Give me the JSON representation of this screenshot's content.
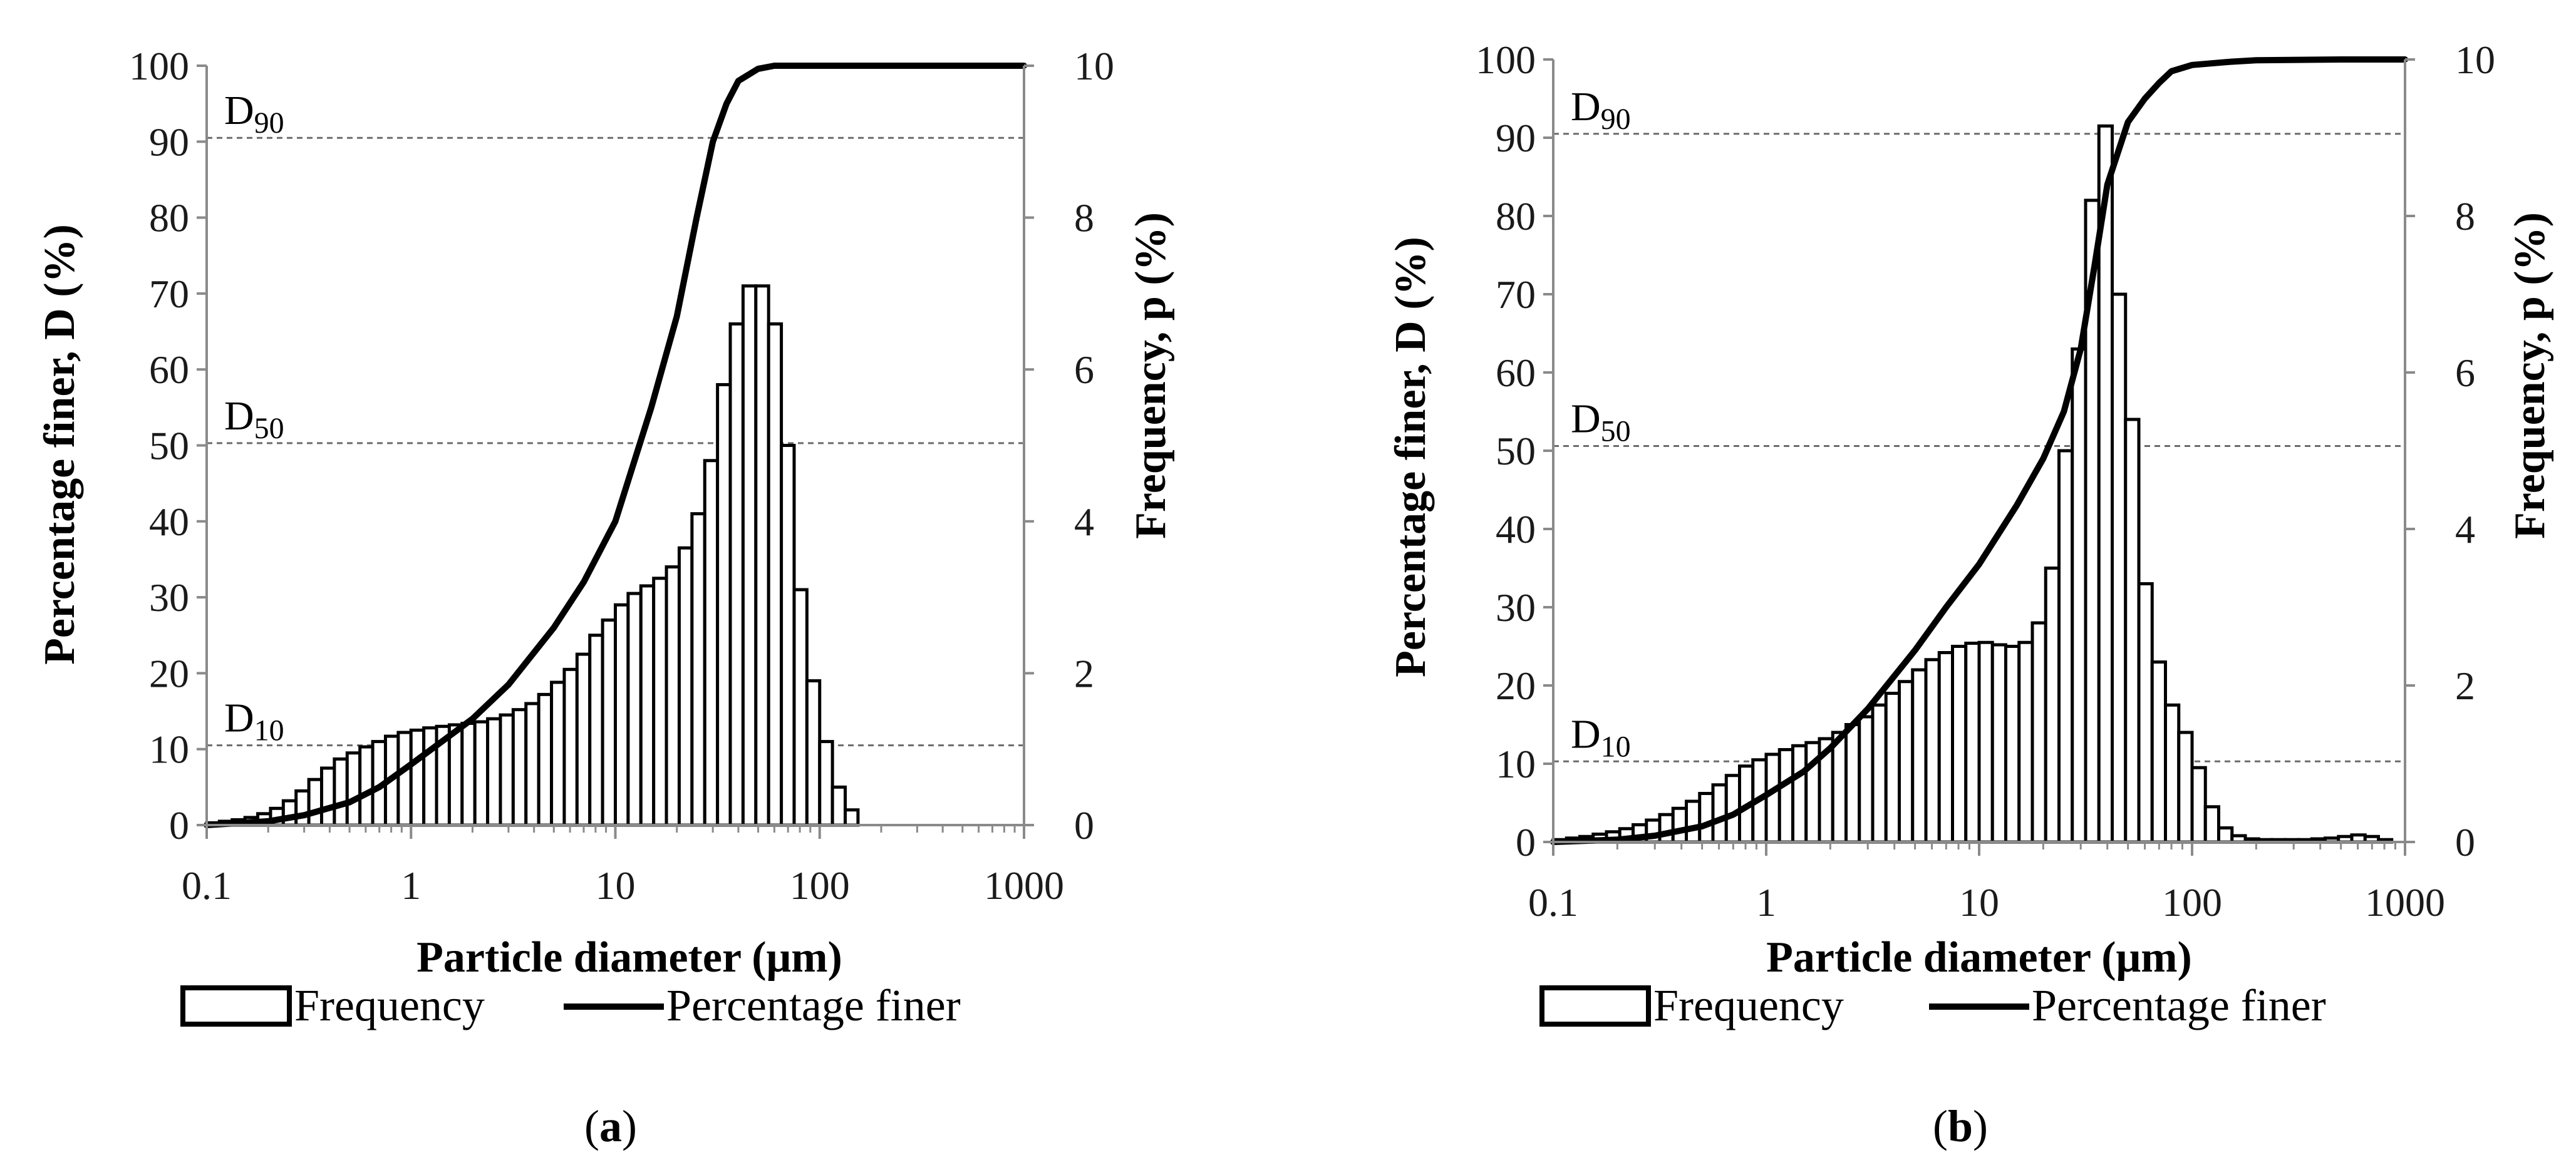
{
  "chart_data": [
    {
      "type": "bar",
      "panel_label": "a",
      "xlabel": "Particle diameter (μm)",
      "ylabel": "Percentage finer, D (%)",
      "ylabel_right": "Frequency, p (%)",
      "x_scale": "log",
      "xlim": [
        0.1,
        1000
      ],
      "ylim": [
        0,
        100
      ],
      "ylim_right": [
        0,
        10
      ],
      "x_ticks": [
        "0.1",
        "1",
        "10",
        "100",
        "1000"
      ],
      "y_ticks": [
        "0",
        "10",
        "20",
        "30",
        "40",
        "50",
        "60",
        "70",
        "80",
        "90",
        "100"
      ],
      "y_ticks_right": [
        "0",
        "2",
        "4",
        "6",
        "8",
        "10"
      ],
      "reference_lines": [
        {
          "label": "D",
          "sub": "10",
          "y": 10.5
        },
        {
          "label": "D",
          "sub": "50",
          "y": 50.3
        },
        {
          "label": "D",
          "sub": "90",
          "y": 90.5
        }
      ],
      "legend": [
        "Frequency",
        "Percentage finer"
      ],
      "series": [
        {
          "name": "Frequency",
          "kind": "histogram",
          "log_bin_start": 0.1,
          "bins_per_decade": 16,
          "values": [
            0.03,
            0.05,
            0.07,
            0.1,
            0.15,
            0.22,
            0.32,
            0.45,
            0.6,
            0.75,
            0.87,
            0.95,
            1.03,
            1.1,
            1.17,
            1.22,
            1.25,
            1.28,
            1.3,
            1.32,
            1.34,
            1.36,
            1.4,
            1.45,
            1.52,
            1.6,
            1.72,
            1.88,
            2.05,
            2.25,
            2.5,
            2.7,
            2.9,
            3.05,
            3.15,
            3.25,
            3.4,
            3.65,
            4.1,
            4.8,
            5.8,
            6.6,
            7.1,
            7.1,
            6.6,
            5.0,
            3.1,
            1.9,
            1.1,
            0.5,
            0.2
          ]
        },
        {
          "name": "Percentage finer",
          "kind": "line",
          "x": [
            0.1,
            0.2,
            0.3,
            0.5,
            0.7,
            1,
            1.5,
            2,
            3,
            5,
            7,
            10,
            15,
            20,
            25,
            30,
            35,
            40,
            50,
            60,
            70,
            100,
            200,
            500,
            1000
          ],
          "y": [
            0,
            0.5,
            1.3,
            3,
            5,
            8,
            11.5,
            14,
            18.5,
            26,
            32,
            40,
            55,
            67,
            80,
            90,
            95,
            98,
            99.6,
            100,
            100,
            100,
            100,
            100,
            100
          ]
        }
      ]
    },
    {
      "type": "bar",
      "panel_label": "b",
      "xlabel": "Particle diameter (μm)",
      "ylabel": "Percentage finer, D (%)",
      "ylabel_right": "Frequency, p (%)",
      "x_scale": "log",
      "xlim": [
        0.1,
        1000
      ],
      "ylim": [
        0,
        100
      ],
      "ylim_right": [
        0,
        10
      ],
      "x_ticks": [
        "0.1",
        "1",
        "10",
        "100",
        "1000"
      ],
      "y_ticks": [
        "0",
        "10",
        "20",
        "30",
        "40",
        "50",
        "60",
        "70",
        "80",
        "90",
        "100"
      ],
      "y_ticks_right": [
        "0",
        "2",
        "4",
        "6",
        "8",
        "10"
      ],
      "reference_lines": [
        {
          "label": "D",
          "sub": "10",
          "y": 10.3
        },
        {
          "label": "D",
          "sub": "50",
          "y": 50.6
        },
        {
          "label": "D",
          "sub": "90",
          "y": 90.5
        }
      ],
      "legend": [
        "Frequency",
        "Percentage finer"
      ],
      "series": [
        {
          "name": "Frequency",
          "kind": "histogram",
          "log_bin_start": 0.1,
          "bins_per_decade": 16,
          "values": [
            0.03,
            0.05,
            0.07,
            0.1,
            0.13,
            0.17,
            0.22,
            0.28,
            0.35,
            0.43,
            0.52,
            0.62,
            0.73,
            0.85,
            0.97,
            1.05,
            1.12,
            1.18,
            1.23,
            1.27,
            1.32,
            1.4,
            1.5,
            1.6,
            1.75,
            1.9,
            2.05,
            2.2,
            2.33,
            2.42,
            2.5,
            2.54,
            2.55,
            2.52,
            2.5,
            2.55,
            2.8,
            3.5,
            5.0,
            6.3,
            8.2,
            9.15,
            7.0,
            5.4,
            3.3,
            2.3,
            1.75,
            1.4,
            0.95,
            0.45,
            0.18,
            0.08,
            0.04,
            0.03,
            0.03,
            0.03,
            0.03,
            0.04,
            0.05,
            0.07,
            0.09,
            0.07,
            0.03
          ]
        },
        {
          "name": "Percentage finer",
          "kind": "line",
          "x": [
            0.1,
            0.2,
            0.3,
            0.5,
            0.7,
            1,
            1.5,
            2,
            3,
            5,
            7,
            10,
            15,
            20,
            25,
            30,
            35,
            40,
            50,
            60,
            70,
            80,
            100,
            150,
            200,
            500,
            1000
          ],
          "y": [
            0,
            0.3,
            0.8,
            2,
            3.5,
            6,
            9,
            12,
            17,
            24.5,
            30,
            35.5,
            43,
            49,
            55,
            63,
            74,
            84,
            92,
            95,
            97,
            98.5,
            99.3,
            99.7,
            99.9,
            100,
            100
          ]
        }
      ]
    }
  ]
}
